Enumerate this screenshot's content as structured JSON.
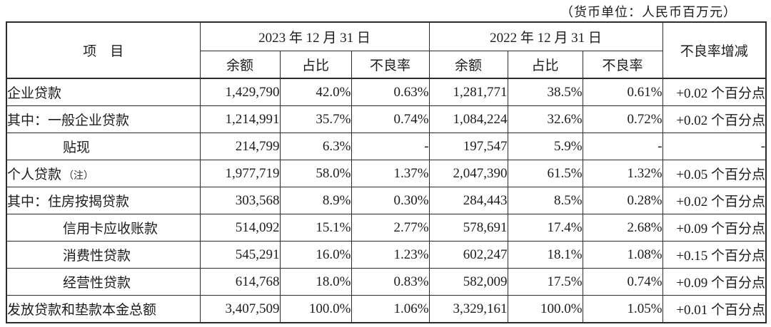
{
  "caption": "（货币单位：人民币百万元）",
  "table": {
    "item_header": "项　目",
    "col_groups": [
      {
        "label": "2023 年 12 月 31 日",
        "sub": [
          "余额",
          "占比",
          "不良率"
        ]
      },
      {
        "label": "2022 年 12 月 31 日",
        "sub": [
          "余额",
          "占比",
          "不良率"
        ]
      }
    ],
    "change_header": "不良率增减",
    "rows": [
      {
        "label": "企业贷款",
        "note": "",
        "bold": true,
        "indent": 0,
        "cells": [
          "1,429,790",
          "42.0%",
          "0.63%",
          "1,281,771",
          "38.5%",
          "0.61%",
          "+0.02 个百分点"
        ]
      },
      {
        "label": "其中：一般企业贷款",
        "note": "",
        "bold": false,
        "indent": 0,
        "cells": [
          "1,214,991",
          "35.7%",
          "0.74%",
          "1,084,224",
          "32.6%",
          "0.72%",
          "+0.02 个百分点"
        ]
      },
      {
        "label": "贴现",
        "note": "",
        "bold": false,
        "indent": 1,
        "cells": [
          "214,799",
          "6.3%",
          "-",
          "197,547",
          "5.9%",
          "-",
          "-"
        ]
      },
      {
        "label": "个人贷款",
        "note": "（注）",
        "bold": true,
        "indent": 0,
        "cells": [
          "1,977,719",
          "58.0%",
          "1.37%",
          "2,047,390",
          "61.5%",
          "1.32%",
          "+0.05 个百分点"
        ]
      },
      {
        "label": "其中：住房按揭贷款",
        "note": "",
        "bold": false,
        "indent": 0,
        "cells": [
          "303,568",
          "8.9%",
          "0.30%",
          "284,443",
          "8.5%",
          "0.28%",
          "+0.02 个百分点"
        ]
      },
      {
        "label": "信用卡应收账款",
        "note": "",
        "bold": false,
        "indent": 1,
        "cells": [
          "514,092",
          "15.1%",
          "2.77%",
          "578,691",
          "17.4%",
          "2.68%",
          "+0.09 个百分点"
        ]
      },
      {
        "label": "消费性贷款",
        "note": "",
        "bold": false,
        "indent": 1,
        "cells": [
          "545,291",
          "16.0%",
          "1.23%",
          "602,247",
          "18.1%",
          "1.08%",
          "+0.15 个百分点"
        ]
      },
      {
        "label": "经营性贷款",
        "note": "",
        "bold": false,
        "indent": 1,
        "cells": [
          "614,768",
          "18.0%",
          "0.83%",
          "582,009",
          "17.5%",
          "0.74%",
          "+0.09 个百分点"
        ]
      },
      {
        "label": "发放贷款和垫款本金总额",
        "note": "",
        "bold": true,
        "indent": 0,
        "cells": [
          "3,407,509",
          "100.0%",
          "1.06%",
          "3,329,161",
          "100.0%",
          "1.05%",
          "+0.01 个百分点"
        ]
      }
    ]
  }
}
